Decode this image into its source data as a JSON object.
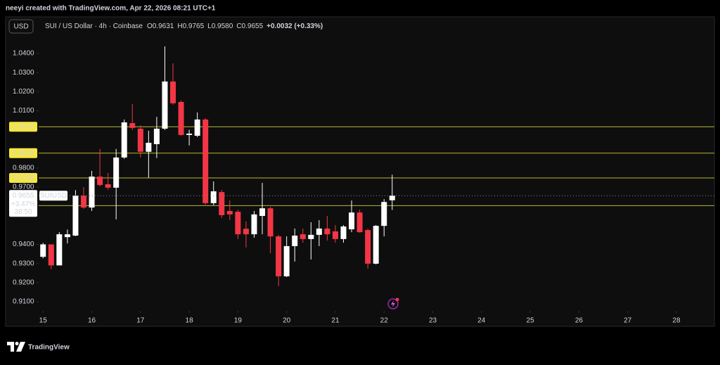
{
  "header": {
    "attribution": "neeyi created with TradingView.com, Apr 22, 2026 08:21 UTC+1"
  },
  "chart_data": {
    "type": "candlestick",
    "currency": "USD",
    "title": "SUI / US Dollar · 4h · Coinbase",
    "readout": [
      {
        "key": "O",
        "value": "0.9631"
      },
      {
        "key": "H",
        "value": "0.9765"
      },
      {
        "key": "L",
        "value": "0.9580"
      },
      {
        "key": "C",
        "value": "0.9655"
      }
    ],
    "change": "+0.0032 (+0.33%)",
    "up_color": "#ffffff",
    "down_color": "#f23645",
    "x": [
      15,
      15.1667,
      15.3333,
      15.5,
      15.6667,
      15.8333,
      16,
      16.1667,
      16.3333,
      16.5,
      16.6667,
      16.8333,
      17,
      17.1667,
      17.3333,
      17.5,
      17.6667,
      17.8333,
      18,
      18.1667,
      18.3333,
      18.5,
      18.6667,
      18.8333,
      19,
      19.1667,
      19.3333,
      19.5,
      19.6667,
      19.8333,
      20,
      20.1667,
      20.3333,
      20.5,
      20.6667,
      20.8333,
      21,
      21.1667,
      21.3333,
      21.5,
      21.6667,
      21.8333,
      22,
      22.1667
    ],
    "open": [
      0.9335,
      0.94,
      0.929,
      0.9438,
      0.9446,
      0.9655,
      0.9593,
      0.9755,
      0.9715,
      0.9697,
      0.9855,
      1.0035,
      1.0006,
      0.9885,
      0.9925,
      1.0006,
      1.0253,
      1.0146,
      0.9973,
      0.9969,
      1.0054,
      0.9616,
      0.9674,
      0.9575,
      0.9571,
      0.9482,
      0.9453,
      0.9549,
      0.9589,
      0.9442,
      0.9233,
      0.9391,
      0.9453,
      0.9428,
      0.945,
      0.9483,
      0.9468,
      0.9428,
      0.9479,
      0.9567,
      0.9475,
      0.9299,
      0.9497,
      0.9631
    ],
    "high": [
      0.9408,
      0.94,
      0.9464,
      0.9478,
      0.9684,
      0.97,
      0.9785,
      0.99,
      0.9774,
      0.99,
      1.0054,
      1.0135,
      1.0024,
      0.9995,
      1.0068,
      1.0437,
      1.0348,
      1.0153,
      1.0,
      1.0091,
      1.0061,
      0.973,
      0.9685,
      0.963,
      0.9582,
      0.952,
      0.9575,
      0.9722,
      0.9597,
      0.945,
      0.9442,
      0.9483,
      0.9483,
      0.9516,
      0.9527,
      0.9549,
      0.9501,
      0.9501,
      0.963,
      0.9582,
      0.9483,
      0.9501,
      0.9637,
      0.9765
    ],
    "low": [
      0.9327,
      0.927,
      0.929,
      0.9405,
      0.9443,
      0.9586,
      0.9575,
      0.9704,
      0.9686,
      0.9531,
      0.9848,
      0.9999,
      0.9855,
      0.9748,
      0.9852,
      0.9999,
      1.0131,
      0.9969,
      0.9918,
      0.9962,
      0.9608,
      0.9605,
      0.9538,
      0.9527,
      0.9428,
      0.9384,
      0.9435,
      0.9453,
      0.9354,
      0.9181,
      0.9229,
      0.931,
      0.9409,
      0.9321,
      0.9391,
      0.942,
      0.9409,
      0.9409,
      0.9464,
      0.9461,
      0.9273,
      0.9295,
      0.9442,
      0.958
    ],
    "close": [
      0.94,
      0.929,
      0.9453,
      0.9453,
      0.9655,
      0.9593,
      0.9755,
      0.9711,
      0.9697,
      0.9855,
      1.0039,
      1.001,
      0.9885,
      0.9932,
      1.0006,
      1.0253,
      1.0139,
      0.9973,
      0.998,
      1.0054,
      0.9616,
      0.9678,
      0.9553,
      0.9557,
      0.9453,
      0.9453,
      0.9557,
      0.9589,
      0.9442,
      0.9233,
      0.9391,
      0.9446,
      0.9428,
      0.945,
      0.9483,
      0.9453,
      0.9428,
      0.9494,
      0.9567,
      0.9464,
      0.9299,
      0.9497,
      0.9622,
      0.9655
    ],
    "xlim": [
      14.91,
      28.78
    ],
    "xticks": [
      15,
      16,
      17,
      18,
      19,
      20,
      21,
      22,
      23,
      24,
      25,
      26,
      27,
      28
    ],
    "ylim": [
      0.9052,
      1.0503
    ],
    "yticks": [
      {
        "value": 1.04,
        "label": "1.0400"
      },
      {
        "value": 1.03,
        "label": "1.0300"
      },
      {
        "value": 1.02,
        "label": "1.0200"
      },
      {
        "value": 1.01,
        "label": "1.0100"
      },
      {
        "value": 0.98,
        "label": "0.9800"
      },
      {
        "value": 0.97,
        "label": "0.9700"
      },
      {
        "value": 0.94,
        "label": "0.9400"
      },
      {
        "value": 0.93,
        "label": "0.9300"
      },
      {
        "value": 0.92,
        "label": "0.9200"
      },
      {
        "value": 0.91,
        "label": "0.9100"
      }
    ],
    "hlines": [
      1.0016,
      0.9878,
      0.9748,
      0.9603
    ],
    "hline_color": "#b8b832",
    "hline_label_color": "#f5e642",
    "last_price": 0.9655,
    "symbol": "SUIUSD",
    "day_change": "+3.47%",
    "countdown": "38:50"
  },
  "branding": {
    "name": "TradingView"
  }
}
